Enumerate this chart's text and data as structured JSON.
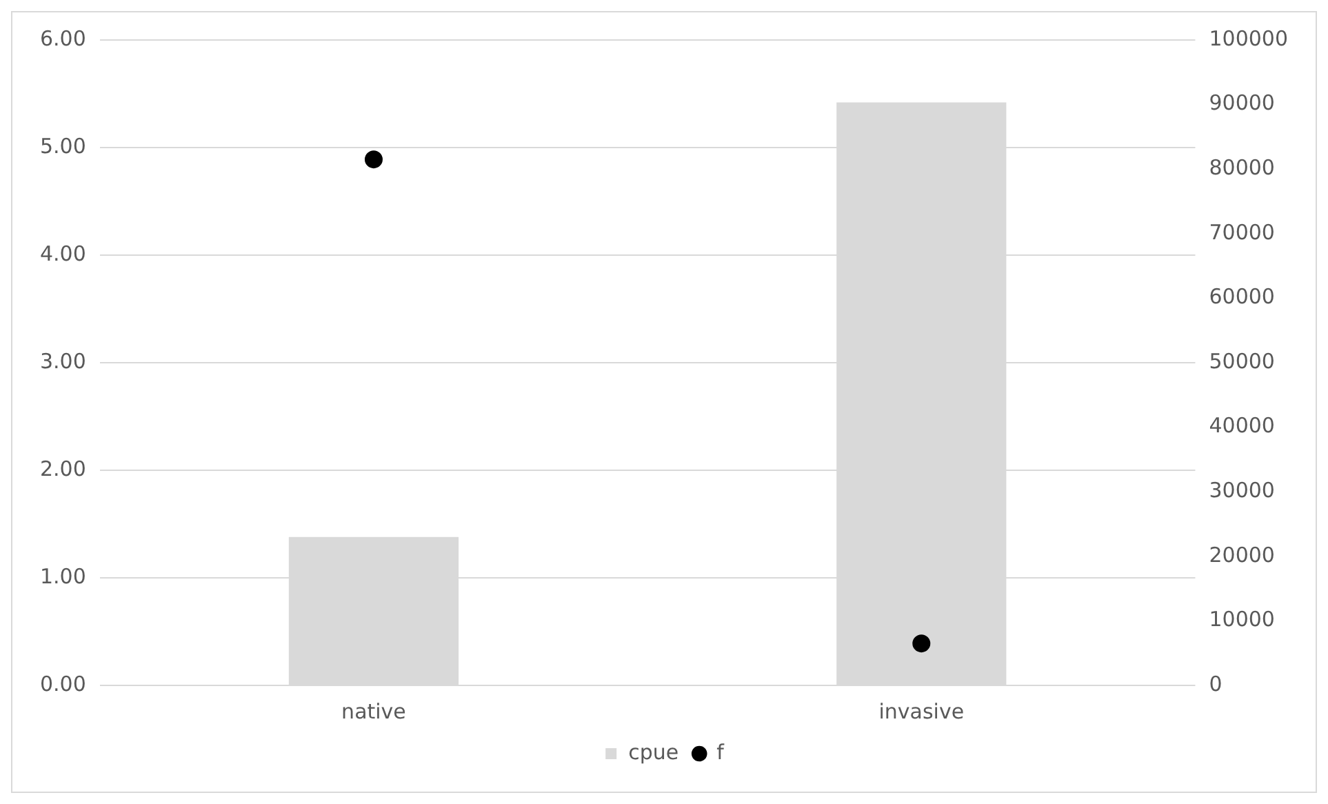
{
  "chart_data": {
    "type": "bar",
    "categories": [
      "native",
      "invasive"
    ],
    "series": [
      {
        "name": "cpue",
        "color": "#d9d9d9",
        "values": [
          1.38,
          5.42
        ]
      },
      {
        "name": "f",
        "type": "scatter",
        "axis": "y2",
        "color": "#000000",
        "x": [
          "native",
          "invasive"
        ],
        "values": [
          81500,
          6500
        ]
      }
    ],
    "ylim": [
      0,
      6
    ],
    "yticks": [
      {
        "value": 0,
        "label": "0.00"
      },
      {
        "value": 1,
        "label": "1.00"
      },
      {
        "value": 2,
        "label": "2.00"
      },
      {
        "value": 3,
        "label": "3.00"
      },
      {
        "value": 4,
        "label": "4.00"
      },
      {
        "value": 5,
        "label": "5.00"
      },
      {
        "value": 6,
        "label": "6.00"
      }
    ],
    "y2lim": [
      0,
      100000
    ],
    "y2ticks": [
      0,
      10000,
      20000,
      30000,
      40000,
      50000,
      60000,
      70000,
      80000,
      90000,
      100000
    ],
    "grid": "y",
    "legend": "bottom",
    "marker": "circle"
  }
}
